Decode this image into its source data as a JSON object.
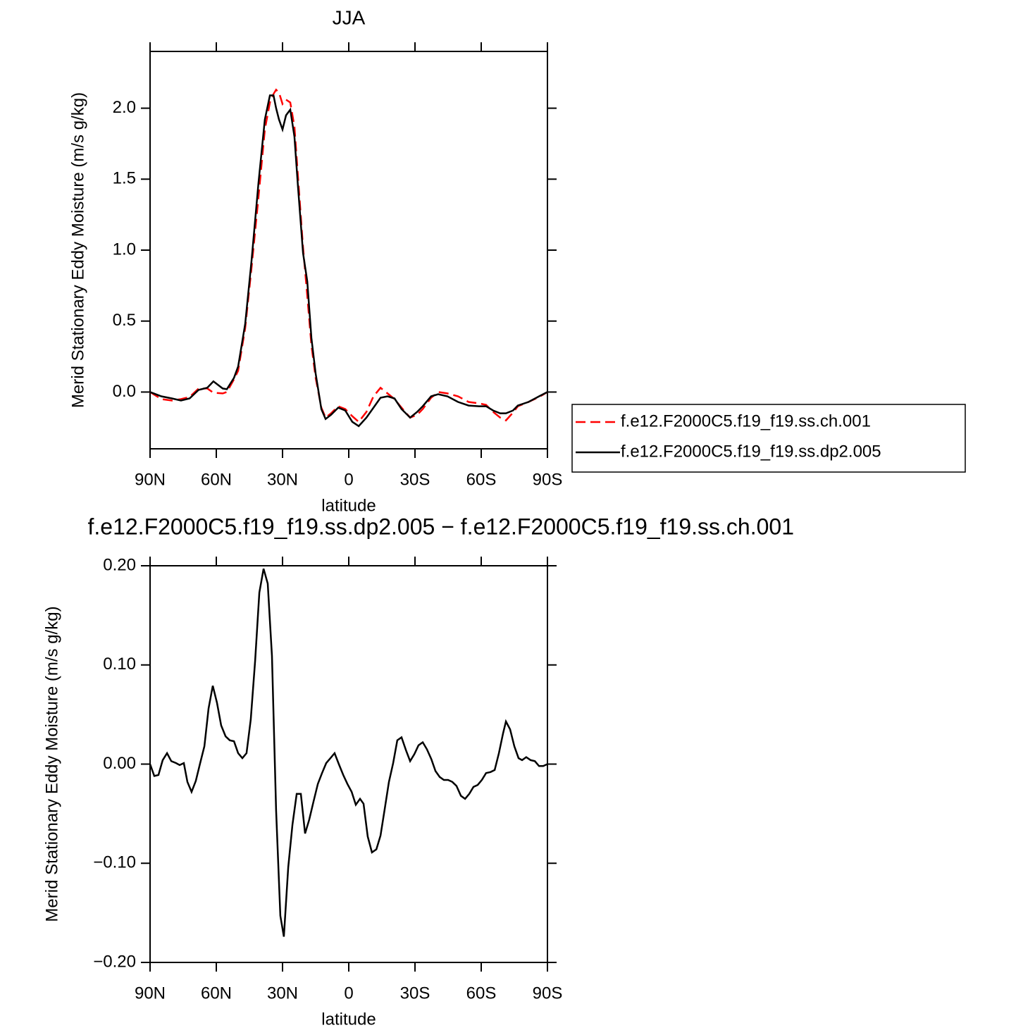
{
  "chart_data": [
    {
      "type": "line",
      "title": "JJA",
      "xlabel": "latitude",
      "ylabel": "Merid Stationary Eddy Moisture (m/s g/kg)",
      "x": [
        90,
        84.9,
        80.1,
        76.0,
        72.1,
        68.0,
        64.1,
        61.3,
        57.1,
        55.2,
        52.0,
        50.1,
        46.9,
        44.0,
        40.9,
        38.0,
        35.7,
        34.1,
        32.9,
        31.6,
        30.0,
        28.4,
        26.5,
        24.6,
        23.0,
        20.7,
        18.8,
        16.9,
        15.0,
        12.4,
        10.5,
        8.0,
        4.8,
        1.6,
        -1.6,
        -4.5,
        -8.0,
        -11.2,
        -14.4,
        -17.6,
        -20.7,
        -23.9,
        -27.8,
        -31.0,
        -33.5,
        -37.3,
        -40.5,
        -44.7,
        -49.5,
        -54.3,
        -59.0,
        -62.2,
        -65.4,
        -68.6,
        -71.2,
        -74.4,
        -76.6,
        -81.4,
        -86.2,
        -90
      ],
      "series": [
        {
          "name": "f.e12.F2000C5.f19_f19.ss.ch.001",
          "color": "#ff0000",
          "line_style": "dashed",
          "values": [
            0,
            -0.05,
            -0.06,
            -0.05,
            -0.035,
            0.025,
            0.025,
            -0.005,
            -0.01,
            0,
            0.09,
            0.15,
            0.45,
            0.88,
            1.37,
            1.85,
            2.04,
            2.1,
            2.13,
            2.11,
            2.03,
            2.06,
            2.04,
            1.87,
            1.52,
            1.02,
            0.68,
            0.33,
            0.1,
            -0.11,
            -0.18,
            -0.15,
            -0.1,
            -0.12,
            -0.17,
            -0.21,
            -0.14,
            -0.03,
            0.03,
            -0.01,
            -0.05,
            -0.11,
            -0.18,
            -0.16,
            -0.12,
            -0.04,
            0,
            -0.01,
            -0.03,
            -0.07,
            -0.08,
            -0.09,
            -0.14,
            -0.18,
            -0.2,
            -0.145,
            -0.1,
            -0.07,
            -0.035,
            0
          ]
        },
        {
          "name": "f.e12.F2000C5.f19_f19.ss.dp2.005",
          "color": "#000000",
          "line_style": "solid",
          "values": [
            0,
            -0.03,
            -0.045,
            -0.06,
            -0.045,
            0.015,
            0.03,
            0.075,
            0.025,
            0.02,
            0.1,
            0.18,
            0.48,
            0.93,
            1.47,
            1.92,
            2.09,
            2.09,
            2.0,
            1.92,
            1.85,
            1.95,
            1.99,
            1.8,
            1.45,
            0.98,
            0.78,
            0.38,
            0.13,
            -0.12,
            -0.19,
            -0.16,
            -0.11,
            -0.13,
            -0.21,
            -0.24,
            -0.18,
            -0.11,
            -0.04,
            -0.03,
            -0.045,
            -0.12,
            -0.18,
            -0.14,
            -0.1,
            -0.03,
            -0.015,
            -0.03,
            -0.07,
            -0.095,
            -0.1,
            -0.1,
            -0.13,
            -0.15,
            -0.15,
            -0.13,
            -0.095,
            -0.07,
            -0.03,
            0
          ]
        }
      ],
      "xlim": [
        90,
        -90
      ],
      "xticks": [
        {
          "value": 90,
          "label": "90N"
        },
        {
          "value": 60,
          "label": "60N"
        },
        {
          "value": 30,
          "label": "30N"
        },
        0,
        {
          "value": -30,
          "label": "30S"
        },
        {
          "value": -60,
          "label": "60S"
        },
        {
          "value": -90,
          "label": "90S"
        }
      ],
      "ylim": [
        -0.4,
        2.4
      ],
      "yticks": [
        {
          "value": 0,
          "label": "0.0"
        },
        0.5,
        {
          "value": 1,
          "label": "1.0"
        },
        1.5,
        {
          "value": 2,
          "label": "2.0"
        }
      ],
      "legend": "right"
    },
    {
      "type": "line",
      "title": "f.e12.F2000C5.f19_f19.ss.dp2.005 − f.e12.F2000C5.f19_f19.ss.ch.001",
      "xlabel": "latitude",
      "ylabel": "Merid Stationary Eddy Moisture (m/s g/kg)",
      "x": [
        90,
        88.1,
        86.2,
        84.3,
        82.3,
        80.4,
        78.2,
        76.6,
        74.7,
        73.1,
        71.2,
        69.3,
        67.3,
        65.4,
        63.5,
        61.6,
        59.7,
        57.8,
        55.8,
        53.9,
        52.0,
        50.1,
        48.2,
        46.3,
        44.4,
        42.4,
        40.5,
        38.6,
        36.7,
        34.8,
        32.9,
        31.0,
        29.4,
        27.4,
        25.5,
        23.6,
        21.7,
        19.8,
        17.9,
        16.0,
        14.0,
        12.1,
        10.2,
        8.3,
        6.4,
        4.5,
        2.5,
        0.6,
        -1.3,
        -3.2,
        -5.1,
        -6.7,
        -8.6,
        -10.5,
        -12.5,
        -14.4,
        -16.3,
        -18.2,
        -20.1,
        -22.0,
        -23.9,
        -25.9,
        -27.8,
        -29.7,
        -31.6,
        -33.5,
        -35.4,
        -37.4,
        -39.3,
        -41.2,
        -43.1,
        -45.0,
        -46.9,
        -48.8,
        -50.8,
        -52.7,
        -54.6,
        -56.5,
        -58.4,
        -60.3,
        -62.2,
        -64.2,
        -66.1,
        -68.0,
        -69.9,
        -71.2,
        -73.1,
        -75.0,
        -76.9,
        -78.5,
        -80.4,
        -82.4,
        -84.3,
        -86.2,
        -88.1,
        -90
      ],
      "values": [
        0,
        -0.012,
        -0.011,
        0.004,
        0.011,
        0.003,
        0.001,
        -0.001,
        0.001,
        -0.018,
        -0.028,
        -0.017,
        0.001,
        0.018,
        0.056,
        0.079,
        0.062,
        0.039,
        0.028,
        0.024,
        0.023,
        0.011,
        0.006,
        0.011,
        0.045,
        0.104,
        0.173,
        0.197,
        0.182,
        0.109,
        -0.047,
        -0.153,
        -0.174,
        -0.104,
        -0.061,
        -0.03,
        -0.03,
        -0.07,
        -0.056,
        -0.038,
        -0.02,
        -0.009,
        0.001,
        0.006,
        0.011,
        0,
        -0.011,
        -0.02,
        -0.028,
        -0.041,
        -0.035,
        -0.04,
        -0.073,
        -0.089,
        -0.086,
        -0.072,
        -0.045,
        -0.018,
        0.001,
        0.024,
        0.027,
        0.014,
        0.003,
        0.01,
        0.019,
        0.022,
        0.015,
        0.005,
        -0.007,
        -0.013,
        -0.016,
        -0.016,
        -0.018,
        -0.022,
        -0.032,
        -0.035,
        -0.03,
        -0.023,
        -0.021,
        -0.016,
        -0.009,
        -0.008,
        -0.006,
        0.011,
        0.031,
        0.043,
        0.035,
        0.018,
        0.006,
        0.004,
        0.007,
        0.004,
        0.003,
        -0.002,
        -0.002,
        0
      ],
      "color": "#000000",
      "line_style": "solid",
      "xlim": [
        90,
        -90
      ],
      "xticks": [
        {
          "value": 90,
          "label": "90N"
        },
        {
          "value": 60,
          "label": "60N"
        },
        {
          "value": 30,
          "label": "30N"
        },
        0,
        {
          "value": -30,
          "label": "30S"
        },
        {
          "value": -60,
          "label": "60S"
        },
        {
          "value": -90,
          "label": "90S"
        }
      ],
      "ylim": [
        -0.2,
        0.2
      ],
      "yticks": [
        {
          "value": -0.2,
          "label": "−0.20"
        },
        {
          "value": -0.1,
          "label": "−0.10"
        },
        {
          "value": 0,
          "label": "0.00"
        },
        {
          "value": 0.1,
          "label": "0.10"
        },
        {
          "value": 0.2,
          "label": "0.20"
        }
      ]
    }
  ]
}
